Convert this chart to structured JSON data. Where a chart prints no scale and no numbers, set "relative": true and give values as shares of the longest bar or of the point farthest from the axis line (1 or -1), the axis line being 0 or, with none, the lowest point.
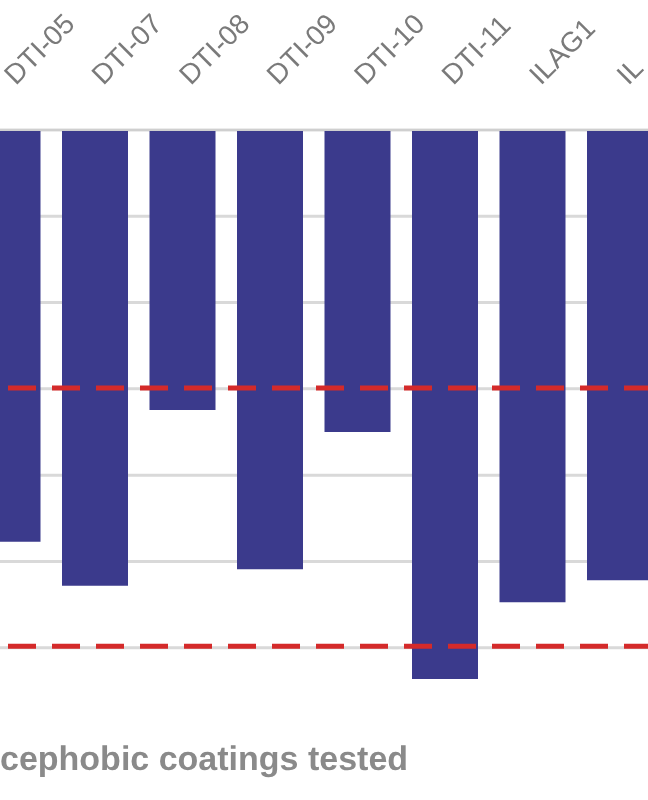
{
  "chart_data": {
    "type": "bar",
    "relative": true,
    "xlabel": "cephobic coatings tested",
    "categories": [
      "DTI-05",
      "DTI-07",
      "DTI-08",
      "DTI-09",
      "DTI-10",
      "DTI-11",
      "ILAG1",
      "IL"
    ],
    "series": [
      {
        "color": "#3b3a8c",
        "values": [
          -0.75,
          -0.83,
          -0.51,
          -0.8,
          -0.55,
          -1,
          -0.86,
          -0.82
        ]
      }
    ],
    "ref_lines": [
      {
        "axis": "y",
        "value": -0.47,
        "color": "#d42a2a",
        "line_style": "dashed"
      },
      {
        "axis": "y",
        "value": -0.94,
        "color": "#d42a2a",
        "line_style": "dashed"
      }
    ],
    "grid": "y"
  }
}
